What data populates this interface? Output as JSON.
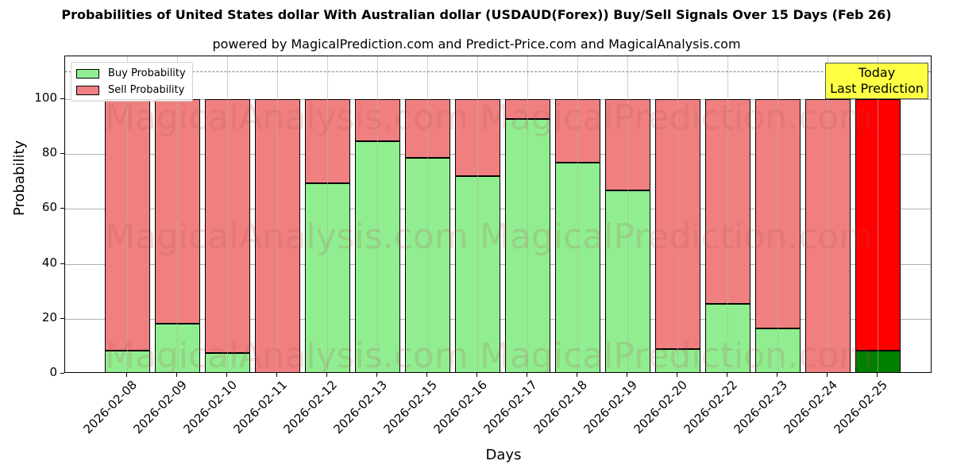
{
  "chart_data": {
    "type": "bar",
    "stacked": true,
    "title": "Probabilities of United States dollar With Australian dollar (USDAUD(Forex)) Buy/Sell Signals Over 15 Days (Feb 26)",
    "subtitle": "powered by MagicalPrediction.com and Predict-Price.com and MagicalAnalysis.com",
    "xlabel": "Days",
    "ylabel": "Probability",
    "ylim": [
      0,
      115
    ],
    "yticks": [
      0,
      20,
      40,
      60,
      80,
      100
    ],
    "grid": true,
    "legend_position": "upper left",
    "reference_line": {
      "y": 110,
      "style": "dashed",
      "color": "#808080"
    },
    "categories": [
      "2026-02-08",
      "2026-02-09",
      "2026-02-10",
      "2026-02-11",
      "2026-02-12",
      "2026-02-13",
      "2026-02-15",
      "2026-02-16",
      "2026-02-17",
      "2026-02-18",
      "2026-02-19",
      "2026-02-20",
      "2026-02-22",
      "2026-02-23",
      "2026-02-24",
      "2026-02-25"
    ],
    "series": [
      {
        "name": "Buy Probability",
        "color": "#90ee90",
        "values": [
          8.4,
          18.2,
          7.5,
          0.0,
          69.4,
          84.7,
          78.6,
          72.0,
          92.8,
          76.9,
          66.8,
          9.0,
          25.4,
          16.5,
          0.0,
          8.4
        ]
      },
      {
        "name": "Sell Probability",
        "color": "#f08080",
        "values": [
          91.6,
          81.8,
          92.5,
          100.0,
          30.6,
          15.3,
          21.4,
          28.0,
          7.2,
          23.1,
          33.2,
          91.0,
          74.6,
          83.5,
          100.0,
          91.6
        ]
      }
    ],
    "highlight": {
      "index": 15,
      "buy_color": "#008000",
      "sell_color": "#ff0000",
      "annotation": "Today\nLast Prediction",
      "annotation_bg": "#ffff44"
    }
  },
  "legend": {
    "buy_label": "Buy Probability",
    "sell_label": "Sell Probability"
  },
  "annotation": {
    "line1": "Today",
    "line2": "Last Prediction"
  },
  "watermarks": [
    "MagicalAnalysis.com",
    "MagicalPrediction.com"
  ]
}
